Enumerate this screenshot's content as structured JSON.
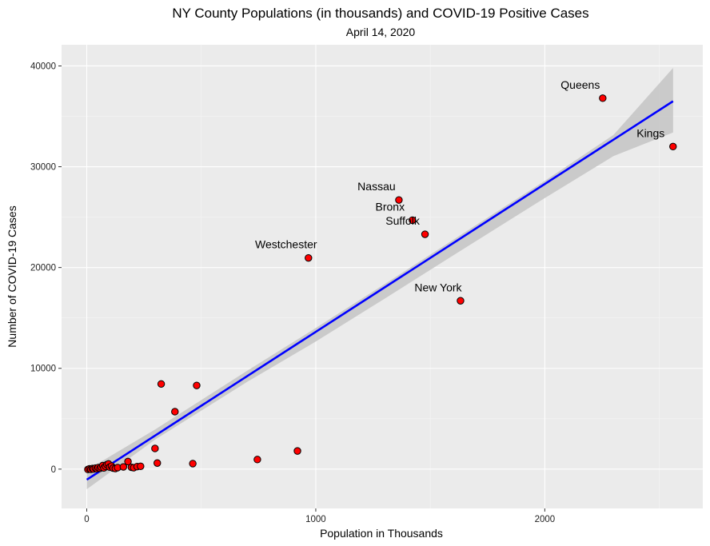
{
  "chart_data": {
    "type": "scatter",
    "title": "NY County Populations (in thousands) and COVID-19 Positive Cases",
    "subtitle": "April 14, 2020",
    "xlabel": "Population in Thousands",
    "ylabel": "Number of COVID-19 Cases",
    "xlim": [
      -110,
      2690
    ],
    "ylim": [
      -3900,
      42100
    ],
    "x_ticks": [
      0,
      1000,
      2000
    ],
    "y_ticks": [
      0,
      10000,
      20000,
      30000,
      40000
    ],
    "x_tick_labels": [
      "0",
      "1000",
      "2000"
    ],
    "y_tick_labels": [
      "0",
      "10000",
      "20000",
      "30000",
      "40000"
    ],
    "grid": true,
    "background": "#ebebeb",
    "colors": {
      "point_fill": "#ff0000",
      "point_stroke": "#000000",
      "trend_line": "#0000ff",
      "confidence_band": "#c6c6c6",
      "grid_major": "#ffffff",
      "grid_minor": "#f5f5f5"
    },
    "points": [
      {
        "x": 5,
        "y": -30,
        "label": ""
      },
      {
        "x": 12,
        "y": 30,
        "label": ""
      },
      {
        "x": 18,
        "y": -20,
        "label": ""
      },
      {
        "x": 25,
        "y": 60,
        "label": ""
      },
      {
        "x": 30,
        "y": 10,
        "label": ""
      },
      {
        "x": 38,
        "y": 100,
        "label": ""
      },
      {
        "x": 45,
        "y": 40,
        "label": ""
      },
      {
        "x": 50,
        "y": 150,
        "label": ""
      },
      {
        "x": 58,
        "y": 80,
        "label": ""
      },
      {
        "x": 63,
        "y": 200,
        "label": ""
      },
      {
        "x": 70,
        "y": 350,
        "label": ""
      },
      {
        "x": 75,
        "y": 120,
        "label": ""
      },
      {
        "x": 82,
        "y": 280,
        "label": ""
      },
      {
        "x": 88,
        "y": 450,
        "label": ""
      },
      {
        "x": 95,
        "y": 520,
        "label": ""
      },
      {
        "x": 100,
        "y": 200,
        "label": ""
      },
      {
        "x": 108,
        "y": 300,
        "label": ""
      },
      {
        "x": 115,
        "y": 100,
        "label": ""
      },
      {
        "x": 125,
        "y": 60,
        "label": ""
      },
      {
        "x": 135,
        "y": 150,
        "label": ""
      },
      {
        "x": 160,
        "y": 220,
        "label": ""
      },
      {
        "x": 180,
        "y": 750,
        "label": ""
      },
      {
        "x": 195,
        "y": 180,
        "label": ""
      },
      {
        "x": 205,
        "y": 140,
        "label": ""
      },
      {
        "x": 220,
        "y": 250,
        "label": ""
      },
      {
        "x": 235,
        "y": 280,
        "label": ""
      },
      {
        "x": 298,
        "y": 2050,
        "label": ""
      },
      {
        "x": 308,
        "y": 600,
        "label": ""
      },
      {
        "x": 325,
        "y": 8450,
        "label": ""
      },
      {
        "x": 385,
        "y": 5700,
        "label": ""
      },
      {
        "x": 463,
        "y": 550,
        "label": ""
      },
      {
        "x": 480,
        "y": 8300,
        "label": ""
      },
      {
        "x": 745,
        "y": 950,
        "label": ""
      },
      {
        "x": 920,
        "y": 1800,
        "label": ""
      },
      {
        "x": 968,
        "y": 20950,
        "label": "Westchester"
      },
      {
        "x": 1363,
        "y": 26700,
        "label": "Nassau"
      },
      {
        "x": 1422,
        "y": 24700,
        "label": "Bronx"
      },
      {
        "x": 1477,
        "y": 23300,
        "label": "Suffolk"
      },
      {
        "x": 1632,
        "y": 16700,
        "label": "New York"
      },
      {
        "x": 2253,
        "y": 36800,
        "label": "Queens"
      },
      {
        "x": 2560,
        "y": 32000,
        "label": "Kings"
      }
    ],
    "trend_line": {
      "x": [
        0,
        2560
      ],
      "y": [
        -1050,
        36500
      ]
    },
    "confidence_band": {
      "x": [
        0,
        300,
        700,
        1000,
        1300,
        1600,
        2000,
        2300,
        2560
      ],
      "upper": [
        -100,
        3950,
        9750,
        14000,
        18350,
        22750,
        28600,
        33150,
        39800
      ],
      "lower": [
        -2000,
        2950,
        8650,
        12650,
        16900,
        21200,
        26900,
        31050,
        33400
      ]
    }
  }
}
